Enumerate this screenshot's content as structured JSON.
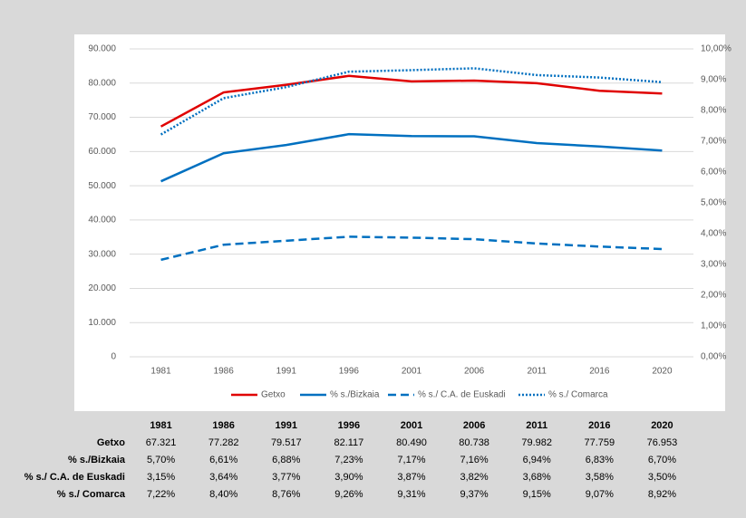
{
  "chart_data": {
    "type": "line",
    "categories": [
      "1981",
      "1986",
      "1991",
      "1996",
      "2001",
      "2006",
      "2011",
      "2016",
      "2020"
    ],
    "ylim": [
      0,
      90000
    ],
    "yticks": [
      {
        "value": 0,
        "label": "0"
      },
      {
        "value": 10000,
        "label": "10.000"
      },
      {
        "value": 20000,
        "label": "20.000"
      },
      {
        "value": 30000,
        "label": "30.000"
      },
      {
        "value": 40000,
        "label": "40.000"
      },
      {
        "value": 50000,
        "label": "50.000"
      },
      {
        "value": 60000,
        "label": "60.000"
      },
      {
        "value": 70000,
        "label": "70.000"
      },
      {
        "value": 80000,
        "label": "80.000"
      },
      {
        "value": 90000,
        "label": "90.000"
      }
    ],
    "y2lim": [
      0,
      10
    ],
    "y2ticks": [
      {
        "value": 0,
        "label": "0,00%"
      },
      {
        "value": 1,
        "label": "1,00%"
      },
      {
        "value": 2,
        "label": "2,00%"
      },
      {
        "value": 3,
        "label": "3,00%"
      },
      {
        "value": 4,
        "label": "4,00%"
      },
      {
        "value": 5,
        "label": "5,00%"
      },
      {
        "value": 6,
        "label": "6,00%"
      },
      {
        "value": 7,
        "label": "7,00%"
      },
      {
        "value": 8,
        "label": "8,00%"
      },
      {
        "value": 9,
        "label": "9,00%"
      },
      {
        "value": 10,
        "label": "10,00%"
      }
    ],
    "grid": true,
    "legend": "bottom",
    "series": [
      {
        "name": "Getxo",
        "color": "#e00000",
        "style": "solid",
        "axis": "y",
        "values": [
          67321,
          77282,
          79517,
          82117,
          80490,
          80738,
          79982,
          77759,
          76953
        ],
        "value_labels": [
          "67.321",
          "77.282",
          "79.517",
          "82.117",
          "80.490",
          "80.738",
          "79.982",
          "77.759",
          "76.953"
        ]
      },
      {
        "name": "% s./Bizkaia",
        "color": "#0070c0",
        "style": "solid",
        "axis": "y2",
        "values": [
          5.7,
          6.61,
          6.88,
          7.23,
          7.17,
          7.16,
          6.94,
          6.83,
          6.7
        ],
        "value_labels": [
          "5,70%",
          "6,61%",
          "6,88%",
          "7,23%",
          "7,17%",
          "7,16%",
          "6,94%",
          "6,83%",
          "6,70%"
        ]
      },
      {
        "name": "% s./ C.A. de Euskadi",
        "color": "#0070c0",
        "style": "dashed",
        "axis": "y2",
        "values": [
          3.15,
          3.64,
          3.77,
          3.9,
          3.87,
          3.82,
          3.68,
          3.58,
          3.5
        ],
        "value_labels": [
          "3,15%",
          "3,64%",
          "3,77%",
          "3,90%",
          "3,87%",
          "3,82%",
          "3,68%",
          "3,58%",
          "3,50%"
        ]
      },
      {
        "name": "% s./ Comarca",
        "color": "#0070c0",
        "style": "dotted",
        "axis": "y2",
        "values": [
          7.22,
          8.4,
          8.76,
          9.26,
          9.31,
          9.37,
          9.15,
          9.07,
          8.92
        ],
        "value_labels": [
          "7,22%",
          "8,40%",
          "8,76%",
          "9,26%",
          "9,31%",
          "9,37%",
          "9,15%",
          "9,07%",
          "8,92%"
        ]
      }
    ]
  }
}
